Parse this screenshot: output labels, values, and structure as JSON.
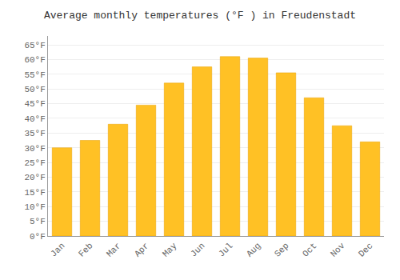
{
  "chart_data": {
    "type": "bar",
    "title": "Average monthly temperatures (°F ) in Freudenstadt",
    "categories": [
      "Jan",
      "Feb",
      "Mar",
      "Apr",
      "May",
      "Jun",
      "Jul",
      "Aug",
      "Sep",
      "Oct",
      "Nov",
      "Dec"
    ],
    "values": [
      30,
      32.5,
      38,
      44.5,
      52,
      57.5,
      61,
      60.5,
      55.5,
      47,
      37.5,
      32
    ],
    "color": "#FFC125",
    "ylim": [
      0,
      68
    ],
    "yticks": [
      {
        "value": 0,
        "label": "0°F"
      },
      {
        "value": 5,
        "label": "5°F"
      },
      {
        "value": 10,
        "label": "10°F"
      },
      {
        "value": 15,
        "label": "15°F"
      },
      {
        "value": 20,
        "label": "20°F"
      },
      {
        "value": 25,
        "label": "25°F"
      },
      {
        "value": 30,
        "label": "30°F"
      },
      {
        "value": 35,
        "label": "35°F"
      },
      {
        "value": 40,
        "label": "40°F"
      },
      {
        "value": 45,
        "label": "45°F"
      },
      {
        "value": 50,
        "label": "50°F"
      },
      {
        "value": 55,
        "label": "55°F"
      },
      {
        "value": 60,
        "label": "60°F"
      },
      {
        "value": 65,
        "label": "65°F"
      }
    ],
    "grid": true
  }
}
